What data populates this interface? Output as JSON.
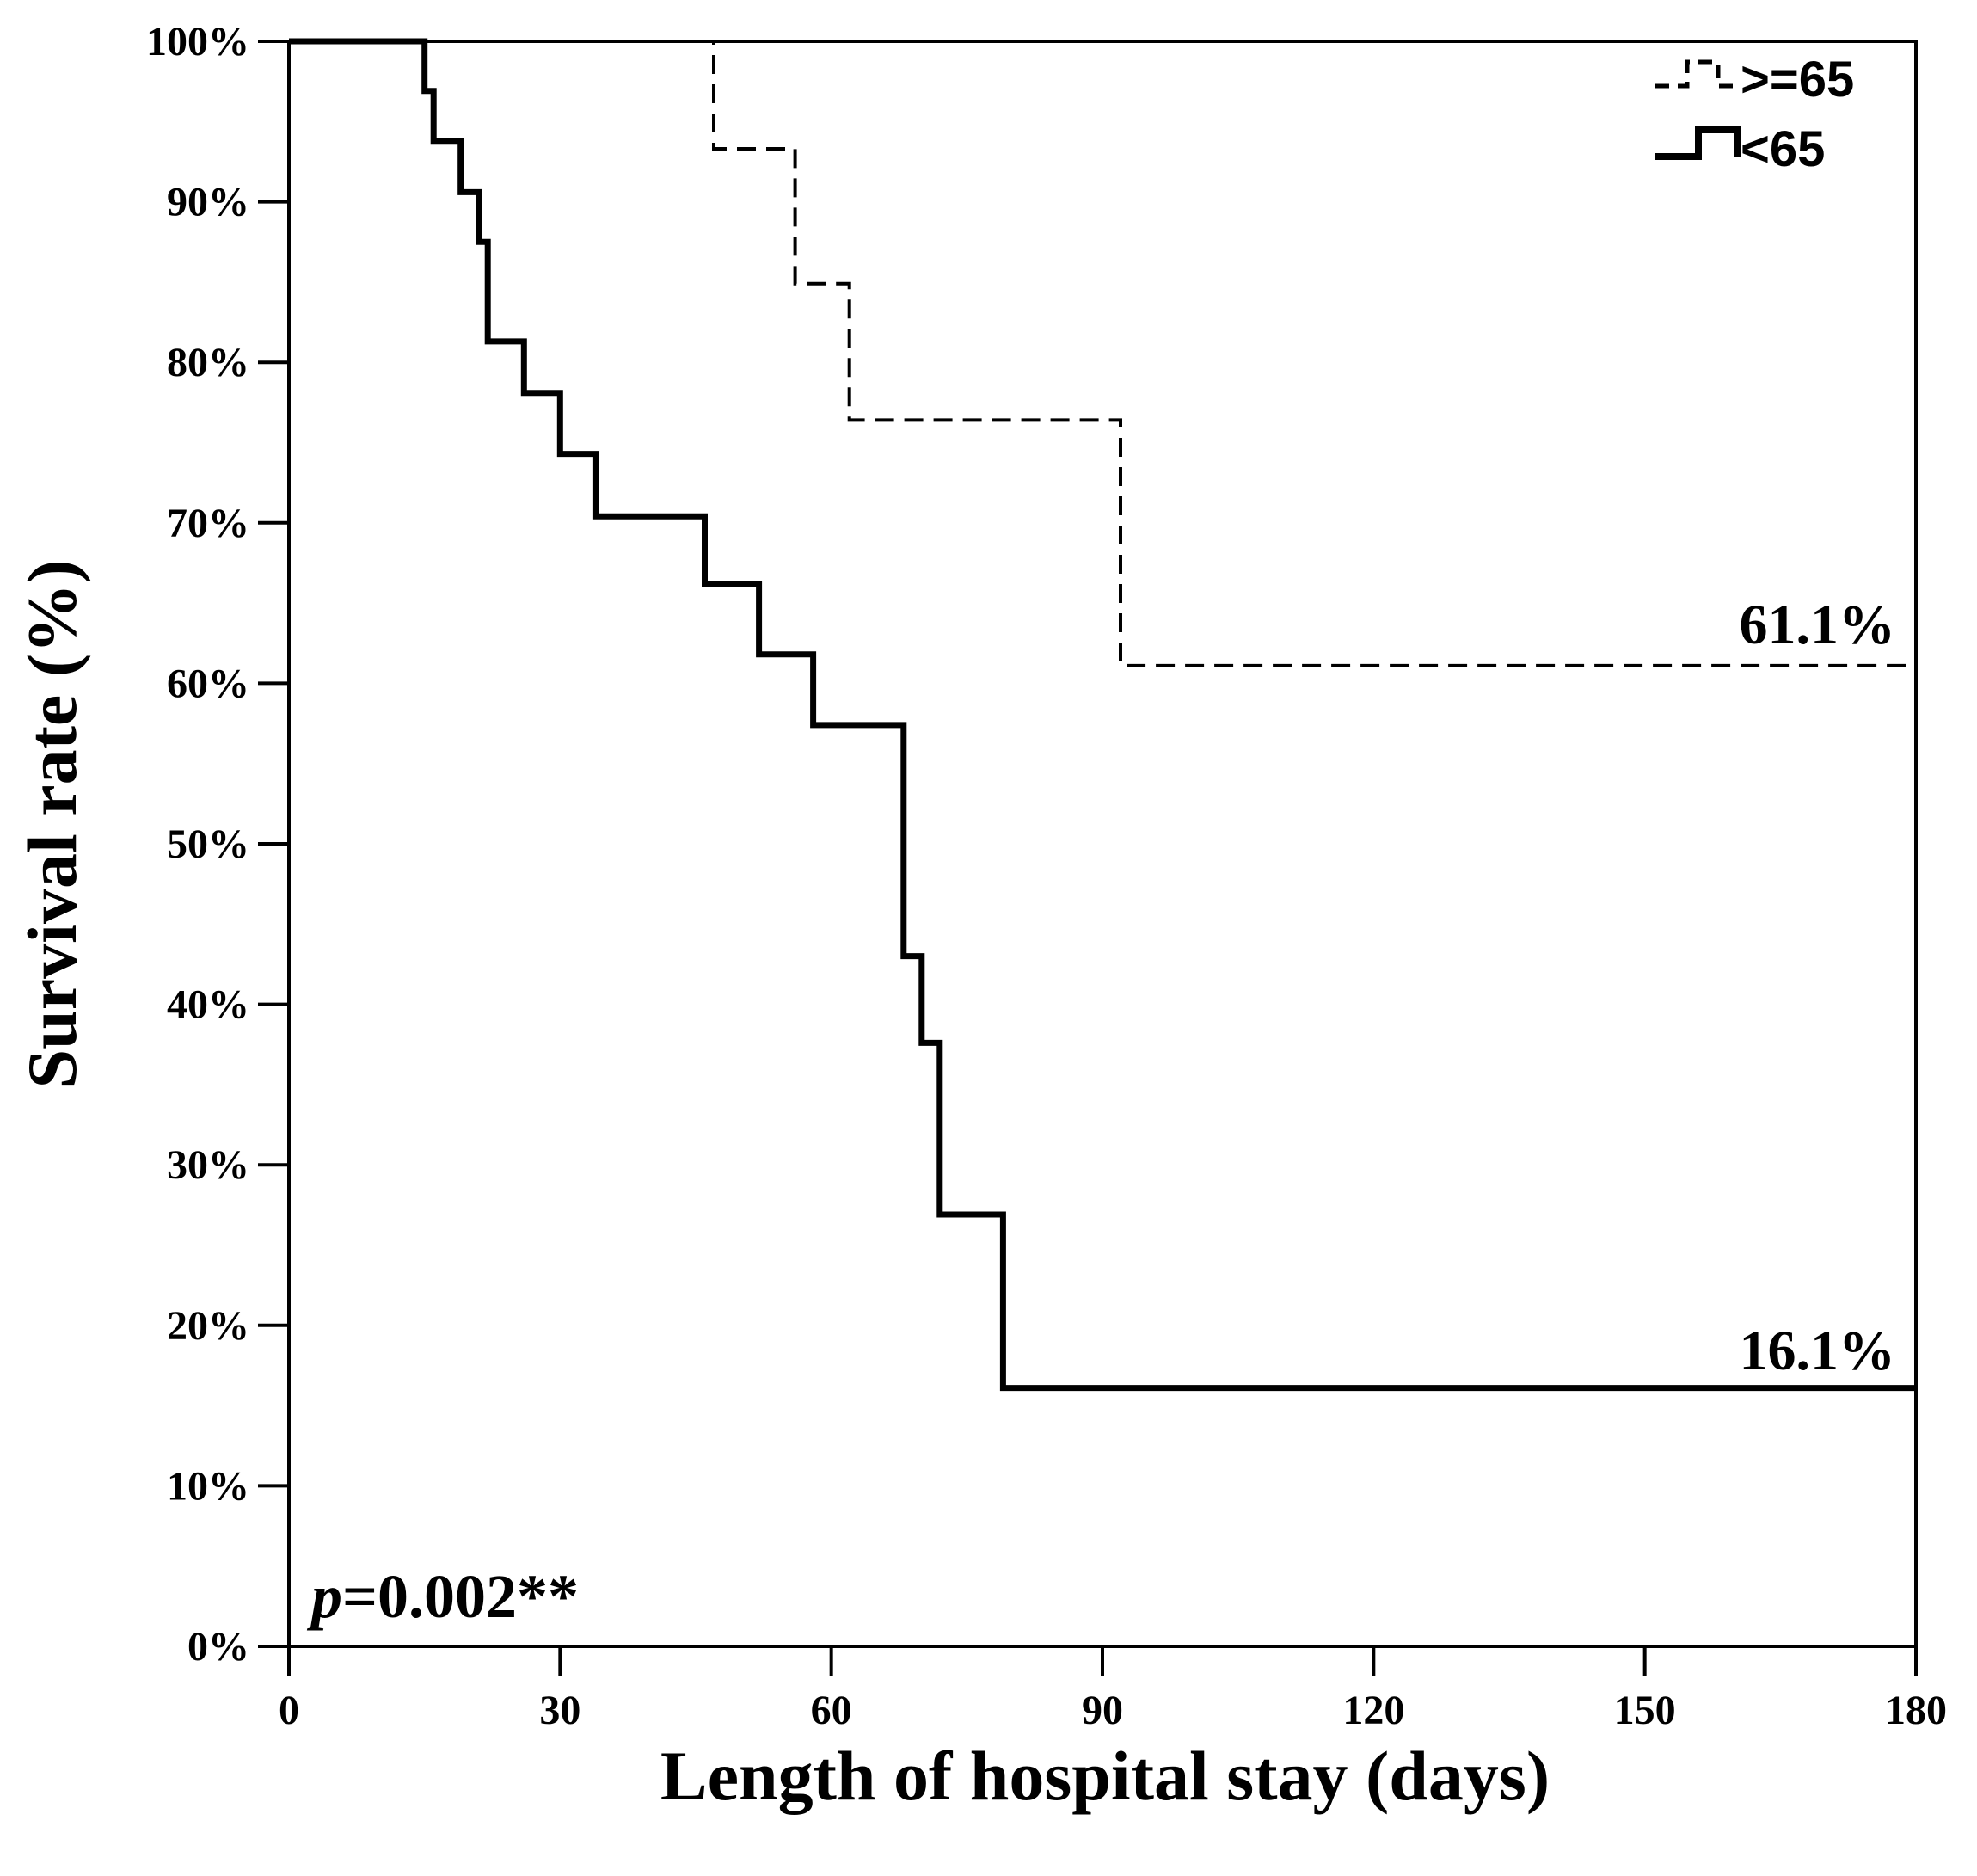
{
  "chart_data": {
    "type": "line",
    "subtype": "kaplan-meier-step",
    "title": "",
    "xlabel": "Length of hospital stay (days)",
    "ylabel": "Survival rate (%)",
    "xlim": [
      0,
      180
    ],
    "ylim": [
      0,
      100
    ],
    "xticks": [
      0,
      30,
      60,
      90,
      120,
      150,
      180
    ],
    "yticks": [
      0,
      10,
      20,
      30,
      40,
      50,
      60,
      70,
      80,
      90,
      100
    ],
    "ytick_suffix": "%",
    "grid": false,
    "legend_position": "top-right",
    "series": [
      {
        "name": ">=65",
        "style": "dashed",
        "end_label": "61.1%",
        "points": [
          [
            0,
            100
          ],
          [
            47,
            100
          ],
          [
            47,
            93.3
          ],
          [
            56,
            93.3
          ],
          [
            56,
            84.9
          ],
          [
            62,
            84.9
          ],
          [
            62,
            76.4
          ],
          [
            92,
            76.4
          ],
          [
            92,
            61.1
          ],
          [
            180,
            61.1
          ]
        ]
      },
      {
        "name": "<65",
        "style": "solid",
        "end_label": "16.1%",
        "points": [
          [
            0,
            100
          ],
          [
            15,
            100
          ],
          [
            15,
            96.9
          ],
          [
            16,
            96.9
          ],
          [
            16,
            93.8
          ],
          [
            19,
            93.8
          ],
          [
            19,
            90.6
          ],
          [
            21,
            90.6
          ],
          [
            21,
            87.5
          ],
          [
            22,
            87.5
          ],
          [
            22,
            81.3
          ],
          [
            26,
            81.3
          ],
          [
            26,
            78.1
          ],
          [
            30,
            78.1
          ],
          [
            30,
            74.3
          ],
          [
            34,
            74.3
          ],
          [
            34,
            70.4
          ],
          [
            46,
            70.4
          ],
          [
            46,
            66.2
          ],
          [
            52,
            66.2
          ],
          [
            52,
            61.8
          ],
          [
            58,
            61.8
          ],
          [
            58,
            57.4
          ],
          [
            68,
            57.4
          ],
          [
            68,
            43.0
          ],
          [
            70,
            43.0
          ],
          [
            70,
            37.6
          ],
          [
            72,
            37.6
          ],
          [
            72,
            26.9
          ],
          [
            79,
            26.9
          ],
          [
            79,
            16.1
          ],
          [
            180,
            16.1
          ]
        ]
      }
    ],
    "annotation": {
      "p_symbol": "p",
      "p_text": "=0.002**"
    }
  }
}
